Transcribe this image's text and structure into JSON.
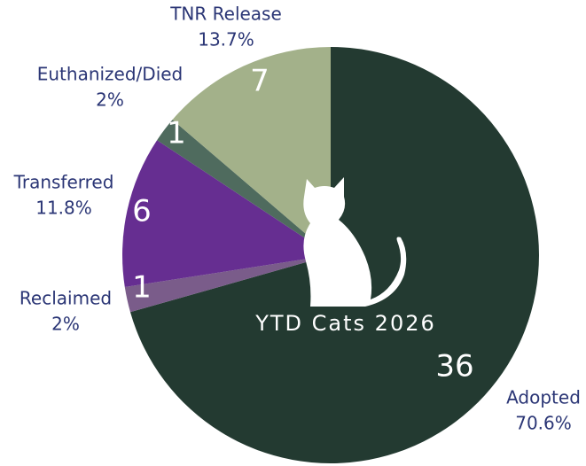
{
  "chart_data": {
    "type": "pie",
    "center_label": "YTD Cats 2026",
    "categories": [
      "Adopted",
      "Reclaimed",
      "Transferred",
      "Euthanized/Died",
      "TNR Release"
    ],
    "values": [
      36,
      1,
      6,
      1,
      7
    ],
    "percents": [
      {
        "value": 70.6,
        "label": "70.6%"
      },
      {
        "value": 2,
        "label": "2%"
      },
      {
        "value": 11.8,
        "label": "11.8%"
      },
      {
        "value": 2,
        "label": "2%"
      },
      {
        "value": 13.7,
        "label": "13.7%"
      }
    ],
    "colors": [
      "#233a31",
      "#7a5c8a",
      "#662e91",
      "#4f6b5e",
      "#a3b18a"
    ]
  }
}
